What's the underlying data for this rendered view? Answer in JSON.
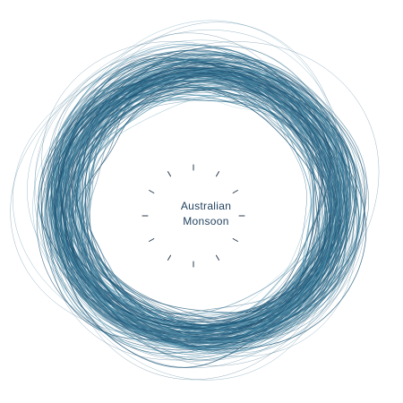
{
  "title": {
    "line1": "Australian",
    "line2": "Monsoon"
  },
  "colors": {
    "background": "#ffffff",
    "title_text": "#1f3f5c",
    "tick_marks": "#2a3b4e",
    "strand_palette": [
      "#1b4d6e",
      "#2a6f8f",
      "#3a86a6",
      "#4d7f99",
      "#255d7e",
      "#5b9bb5",
      "#1e5878"
    ]
  },
  "icons": {
    "dial": "clock-tick-dial"
  }
}
